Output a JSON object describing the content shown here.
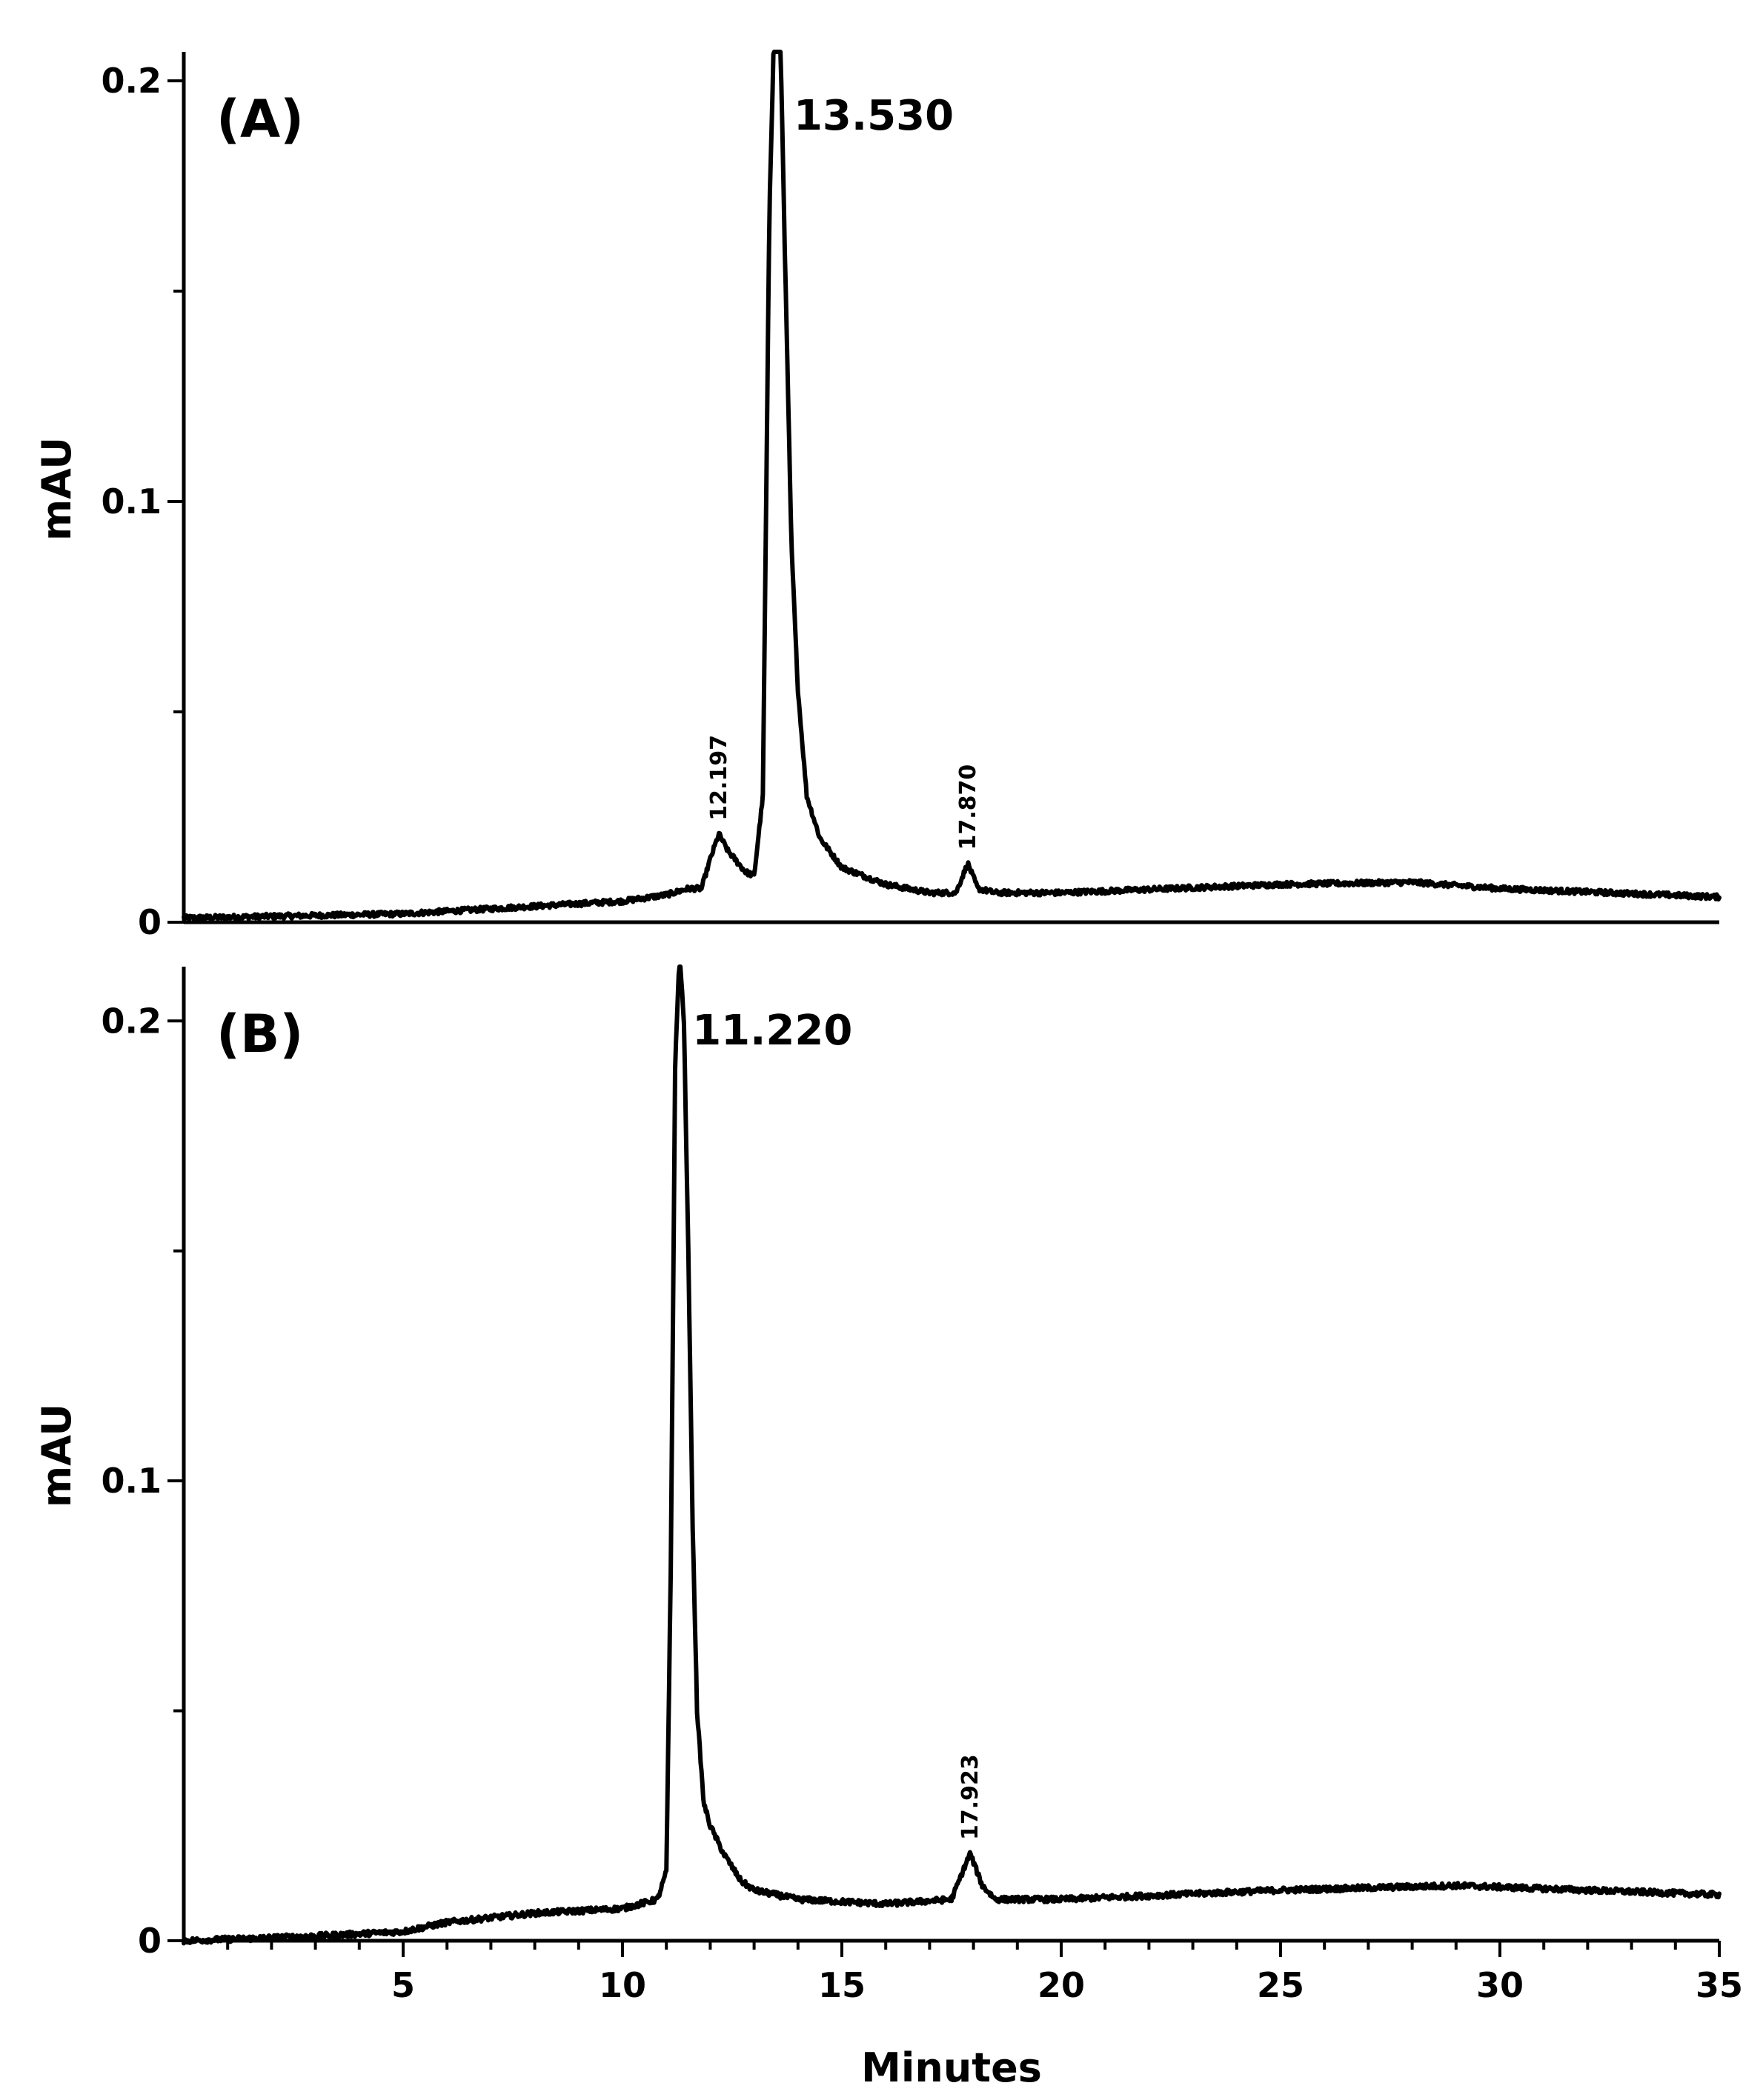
{
  "chart_data": [
    {
      "type": "line",
      "panel_label": "(A)",
      "ylabel": "mAU",
      "xlabel": "",
      "xlim": [
        0,
        35
      ],
      "ylim": [
        0,
        0.21
      ],
      "y_ticks": [
        "0",
        "0.1",
        "0.2"
      ],
      "x_ticks": [],
      "baseline": [
        [
          0,
          0.001
        ],
        [
          5,
          0.002
        ],
        [
          10,
          0.005
        ],
        [
          11.5,
          0.007
        ],
        [
          12.9,
          0.009
        ],
        [
          18.5,
          0.007
        ],
        [
          25,
          0.009
        ],
        [
          28,
          0.0095
        ],
        [
          35,
          0.006
        ]
      ],
      "peaks": [
        {
          "rt": 12.197,
          "label": "12.197",
          "height": 0.021,
          "style": "minor"
        },
        {
          "rt": 13.53,
          "label": "13.530",
          "height": 0.21,
          "style": "main"
        },
        {
          "rt": 17.87,
          "label": "17.870",
          "height": 0.014,
          "style": "minor"
        }
      ],
      "series": [
        {
          "points": [
            [
              0,
              0.001
            ],
            [
              5,
              0.002
            ],
            [
              10,
              0.005
            ],
            [
              11.0,
              0.0065
            ],
            [
              11.5,
              0.008
            ],
            [
              11.8,
              0.008
            ],
            [
              12.0,
              0.015
            ],
            [
              12.197,
              0.021
            ],
            [
              12.4,
              0.017
            ],
            [
              12.8,
              0.012
            ],
            [
              13.0,
              0.011
            ],
            [
              13.2,
              0.03
            ],
            [
              13.35,
              0.17
            ],
            [
              13.45,
              0.21
            ],
            [
              13.6,
              0.21
            ],
            [
              13.7,
              0.16
            ],
            [
              13.85,
              0.09
            ],
            [
              14.0,
              0.055
            ],
            [
              14.2,
              0.03
            ],
            [
              14.5,
              0.02
            ],
            [
              15.0,
              0.013
            ],
            [
              16.0,
              0.009
            ],
            [
              17.0,
              0.007
            ],
            [
              17.6,
              0.007
            ],
            [
              17.87,
              0.014
            ],
            [
              18.1,
              0.008
            ],
            [
              18.5,
              0.007
            ],
            [
              20,
              0.007
            ],
            [
              25,
              0.009
            ],
            [
              28,
              0.0095
            ],
            [
              30,
              0.008
            ],
            [
              35,
              0.006
            ]
          ]
        }
      ]
    },
    {
      "type": "line",
      "panel_label": "(B)",
      "ylabel": "mAU",
      "xlabel": "Minutes",
      "xlim": [
        0,
        35
      ],
      "ylim": [
        0,
        0.215
      ],
      "y_ticks": [
        "0",
        "0.1",
        "0.2"
      ],
      "x_ticks": [
        "5",
        "10",
        "15",
        "20",
        "25",
        "30",
        "35"
      ],
      "baseline": [
        [
          0,
          0.0
        ],
        [
          5,
          0.002
        ],
        [
          8,
          0.006
        ],
        [
          10.8,
          0.008
        ],
        [
          13,
          0.009
        ],
        [
          16,
          0.008
        ],
        [
          20,
          0.009
        ],
        [
          25,
          0.011
        ],
        [
          29,
          0.012
        ],
        [
          35,
          0.01
        ]
      ],
      "peaks": [
        {
          "rt": 11.22,
          "label": "11.220",
          "height": 0.215,
          "style": "main"
        },
        {
          "rt": 17.923,
          "label": "17.923",
          "height": 0.019,
          "style": "minor"
        }
      ],
      "series": [
        {
          "points": [
            [
              0,
              0.0
            ],
            [
              3,
              0.001
            ],
            [
              5,
              0.002
            ],
            [
              6,
              0.004
            ],
            [
              8,
              0.006
            ],
            [
              10,
              0.007
            ],
            [
              10.8,
              0.009
            ],
            [
              11.0,
              0.015
            ],
            [
              11.1,
              0.08
            ],
            [
              11.2,
              0.19
            ],
            [
              11.3,
              0.215
            ],
            [
              11.4,
              0.2
            ],
            [
              11.5,
              0.15
            ],
            [
              11.6,
              0.09
            ],
            [
              11.7,
              0.05
            ],
            [
              11.85,
              0.03
            ],
            [
              12.0,
              0.025
            ],
            [
              12.3,
              0.019
            ],
            [
              12.7,
              0.013
            ],
            [
              13.0,
              0.011
            ],
            [
              14,
              0.009
            ],
            [
              16,
              0.008
            ],
            [
              17.5,
              0.009
            ],
            [
              17.923,
              0.019
            ],
            [
              18.2,
              0.012
            ],
            [
              18.5,
              0.009
            ],
            [
              20,
              0.009
            ],
            [
              25,
              0.011
            ],
            [
              29,
              0.012
            ],
            [
              35,
              0.01
            ]
          ]
        }
      ]
    }
  ]
}
